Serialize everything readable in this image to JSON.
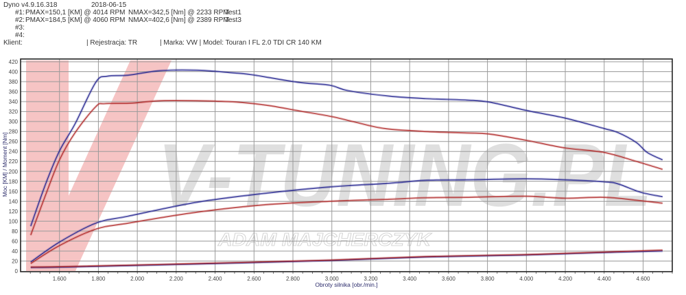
{
  "header": {
    "app": "Dyno v4.9.16.318",
    "date": "2018-06-15",
    "runs": [
      {
        "id": "#1:",
        "pmax": "PMAX=150,1 [KM] @ 4014 RPM",
        "nmax": "NMAX=342,5 [Nm] @ 2233 RPM",
        "name": "Test1"
      },
      {
        "id": "#2:",
        "pmax": "PMAX=184,5 [KM] @ 4060 RPM",
        "nmax": "NMAX=402,6 [Nm] @ 2389 RPM",
        "name": "Test3"
      },
      {
        "id": "#3:"
      },
      {
        "id": "#4:"
      }
    ],
    "client_label": "Klient:",
    "registration": "| Rejestracja: TR",
    "vehicle": "| Marka: VW | Model: Touran I FL 2.0 TDI CR 140 KM"
  },
  "watermark": {
    "brand": "V-TUNING.PL",
    "name": "ADAM MAJCHERCZYK"
  },
  "chart_data": {
    "type": "line",
    "xlabel": "Obroty silnika [obr./min.]",
    "ylabel": "Moc [KM] / Moment [Nm]",
    "xlim": [
      1400,
      4750
    ],
    "ylim": [
      0,
      420
    ],
    "grid": true,
    "x_ticks": [
      1600,
      1800,
      2000,
      2200,
      2400,
      2600,
      2800,
      3000,
      3200,
      3400,
      3600,
      3800,
      4000,
      4200,
      4400,
      4600
    ],
    "x_tick_labels": [
      "1.600",
      "1.800",
      "2.000",
      "2.200",
      "2.400",
      "2.600",
      "2.800",
      "3.000",
      "3.200",
      "3.400",
      "3.600",
      "3.800",
      "4.000",
      "4.200",
      "4.400",
      "4.600"
    ],
    "y_ticks": [
      0,
      20,
      40,
      60,
      80,
      100,
      120,
      140,
      160,
      180,
      200,
      220,
      240,
      260,
      280,
      300,
      320,
      340,
      360,
      380,
      400,
      420
    ],
    "colors": {
      "test1": "#b02828",
      "test3": "#23238f"
    },
    "series": [
      {
        "run": "Test3",
        "quantity": "torque",
        "color": "#23238f",
        "x": [
          1452,
          1530,
          1600,
          1681,
          1787,
          1847,
          1953,
          2115,
          2306,
          2482,
          2588,
          2822,
          2988,
          3083,
          3294,
          3481,
          3693,
          3809,
          4003,
          4198,
          4399,
          4470,
          4565,
          4621,
          4700
        ],
        "y": [
          90,
          176,
          241,
          296,
          379,
          391,
          393,
          402,
          403,
          398,
          394,
          379,
          373,
          362,
          351,
          346,
          343,
          339,
          322,
          307,
          286,
          278,
          258,
          238,
          223
        ]
      },
      {
        "run": "Test1",
        "quantity": "torque",
        "color": "#b02828",
        "x": [
          1452,
          1530,
          1600,
          1681,
          1787,
          1833,
          1974,
          2140,
          2468,
          2659,
          2822,
          2998,
          3118,
          3270,
          3481,
          3693,
          3809,
          4003,
          4198,
          4399,
          4565,
          4700
        ],
        "y": [
          72,
          154,
          223,
          278,
          330,
          336,
          337,
          342,
          340,
          333,
          322,
          310,
          299,
          286,
          280,
          277,
          275,
          262,
          247,
          238,
          220,
          204
        ]
      },
      {
        "run": "Test3",
        "quantity": "power",
        "color": "#23238f",
        "x": [
          1452,
          1600,
          1787,
          1953,
          2306,
          2659,
          2998,
          3294,
          3481,
          3693,
          4003,
          4198,
          4399,
          4470,
          4588,
          4700
        ],
        "y": [
          18,
          58,
          96,
          110,
          138,
          156,
          169,
          176,
          182,
          183,
          185,
          183,
          179,
          175,
          158,
          149
        ]
      },
      {
        "run": "Test1",
        "quantity": "power",
        "color": "#b02828",
        "x": [
          1452,
          1600,
          1787,
          1953,
          2306,
          2659,
          2998,
          3294,
          3481,
          3693,
          4003,
          4198,
          4399,
          4588,
          4700
        ],
        "y": [
          15,
          51,
          84,
          96,
          118,
          133,
          140,
          144,
          147,
          148,
          150,
          146,
          148,
          141,
          136
        ]
      },
      {
        "run": "Test3",
        "quantity": "loss",
        "color": "#23238f",
        "x": [
          1452,
          1646,
          2306,
          2998,
          3481,
          4003,
          4399,
          4700
        ],
        "y": [
          7,
          8,
          14,
          21,
          28,
          32,
          37,
          40
        ]
      },
      {
        "run": "Test1",
        "quantity": "loss",
        "color": "#b02828",
        "x": [
          1452,
          1646,
          2306,
          2998,
          3481,
          4003,
          4399,
          4700
        ],
        "y": [
          8,
          9,
          15,
          22,
          29,
          33,
          38,
          42
        ]
      }
    ]
  }
}
